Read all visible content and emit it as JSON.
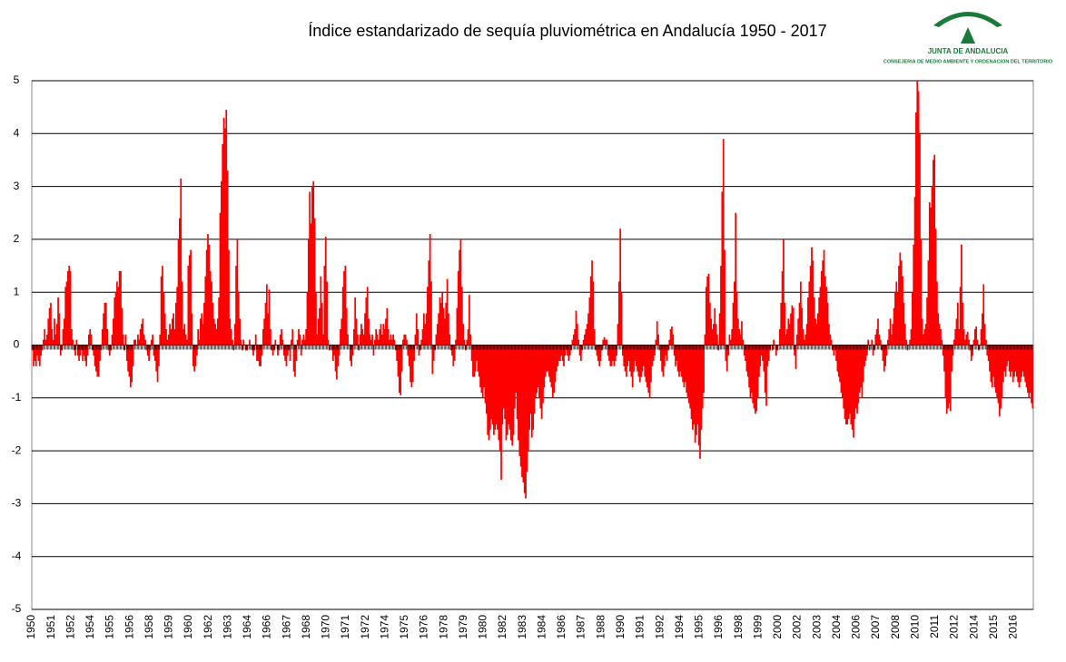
{
  "logo": {
    "name": "JUNTA DE ANDALUCIA",
    "subtitle": "CONSEJERIA DE MEDIO AMBIENTE Y ORDENACION DEL TERRITORIO"
  },
  "chart_data": {
    "type": "bar",
    "title": "Índice estandarizado de sequía pluviométrica en Andalucía 1950 - 2017",
    "color": "#ff0000",
    "grid": true,
    "ylim": [
      -5,
      5
    ],
    "yticks": [
      -5,
      -4,
      -3,
      -2,
      -1,
      0,
      1,
      2,
      3,
      4,
      5
    ],
    "categories": [
      "1950",
      null,
      null,
      null,
      null,
      null,
      null,
      null,
      null,
      null,
      null,
      null,
      null,
      null,
      null,
      null,
      "1951",
      null,
      null,
      null,
      null,
      null,
      null,
      null,
      null,
      null,
      null,
      null,
      null,
      null,
      null,
      null,
      "1952",
      null,
      null,
      null,
      null,
      null,
      null,
      null,
      null,
      null,
      null,
      null,
      null,
      null,
      null,
      null,
      "1954",
      null,
      null,
      null,
      null,
      null,
      null,
      null,
      null,
      null,
      null,
      null,
      null,
      null,
      null,
      null,
      "1955",
      null,
      null,
      null,
      null,
      null,
      null,
      null,
      null,
      null,
      null,
      null,
      null,
      null,
      null,
      null,
      "1956",
      null,
      null,
      null,
      null,
      null,
      null,
      null,
      null,
      null,
      null,
      null,
      null,
      null,
      null,
      null,
      "1958",
      null,
      null,
      null,
      null,
      null,
      null,
      null,
      null,
      null,
      null,
      null,
      null,
      null,
      null,
      null,
      "1959",
      null,
      null,
      null,
      null,
      null,
      null,
      null,
      null,
      null,
      null,
      null,
      null,
      null,
      null,
      null,
      "1960",
      null,
      null,
      null,
      null,
      null,
      null,
      null,
      null,
      null,
      null,
      null,
      null,
      null,
      null,
      null,
      "1962",
      null,
      null,
      null,
      null,
      null,
      null,
      null,
      null,
      null,
      null,
      null,
      null,
      null,
      null,
      null,
      "1963",
      null,
      null,
      null,
      null,
      null,
      null,
      null,
      null,
      null,
      null,
      null,
      null,
      null,
      null,
      null,
      "1964",
      null,
      null,
      null,
      null,
      null,
      null,
      null,
      null,
      null,
      null,
      null,
      null,
      null,
      null,
      null,
      "1966",
      null,
      null,
      null,
      null,
      null,
      null,
      null,
      null,
      null,
      null,
      null,
      null,
      null,
      null,
      null,
      "1967",
      null,
      null,
      null,
      null,
      null,
      null,
      null,
      null,
      null,
      null,
      null,
      null,
      null,
      null,
      null,
      "1968",
      null,
      null,
      null,
      null,
      null,
      null,
      null,
      null,
      null,
      null,
      null,
      null,
      null,
      null,
      null,
      "1970",
      null,
      null,
      null,
      null,
      null,
      null,
      null,
      null,
      null,
      null,
      null,
      null,
      null,
      null,
      null,
      "1971",
      null,
      null,
      null,
      null,
      null,
      null,
      null,
      null,
      null,
      null,
      null,
      null,
      null,
      null,
      null,
      "1972",
      null,
      null,
      null,
      null,
      null,
      null,
      null,
      null,
      null,
      null,
      null,
      null,
      null,
      null,
      null,
      "1974",
      null,
      null,
      null,
      null,
      null,
      null,
      null,
      null,
      null,
      null,
      null,
      null,
      null,
      null,
      null,
      "1975",
      null,
      null,
      null,
      null,
      null,
      null,
      null,
      null,
      null,
      null,
      null,
      null,
      null,
      null,
      null,
      "1976",
      null,
      null,
      null,
      null,
      null,
      null,
      null,
      null,
      null,
      null,
      null,
      null,
      null,
      null,
      null,
      "1978",
      null,
      null,
      null,
      null,
      null,
      null,
      null,
      null,
      null,
      null,
      null,
      null,
      null,
      null,
      null,
      "1979",
      null,
      null,
      null,
      null,
      null,
      null,
      null,
      null,
      null,
      null,
      null,
      null,
      null,
      null,
      null,
      "1980",
      null,
      null,
      null,
      null,
      null,
      null,
      null,
      null,
      null,
      null,
      null,
      null,
      null,
      null,
      null,
      "1982",
      null,
      null,
      null,
      null,
      null,
      null,
      null,
      null,
      null,
      null,
      null,
      null,
      null,
      null,
      null,
      "1983",
      null,
      null,
      null,
      null,
      null,
      null,
      null,
      null,
      null,
      null,
      null,
      null,
      null,
      null,
      null,
      "1984",
      null,
      null,
      null,
      null,
      null,
      null,
      null,
      null,
      null,
      null,
      null,
      null,
      null,
      null,
      null,
      "1986",
      null,
      null,
      null,
      null,
      null,
      null,
      null,
      null,
      null,
      null,
      null,
      null,
      null,
      null,
      null,
      "1987",
      null,
      null,
      null,
      null,
      null,
      null,
      null,
      null,
      null,
      null,
      null,
      null,
      null,
      null,
      null,
      "1988",
      null,
      null,
      null,
      null,
      null,
      null,
      null,
      null,
      null,
      null,
      null,
      null,
      null,
      null,
      null,
      "1990",
      null,
      null,
      null,
      null,
      null,
      null,
      null,
      null,
      null,
      null,
      null,
      null,
      null,
      null,
      null,
      "1991",
      null,
      null,
      null,
      null,
      null,
      null,
      null,
      null,
      null,
      null,
      null,
      null,
      null,
      null,
      null,
      "1992",
      null,
      null,
      null,
      null,
      null,
      null,
      null,
      null,
      null,
      null,
      null,
      null,
      null,
      null,
      null,
      "1994",
      null,
      null,
      null,
      null,
      null,
      null,
      null,
      null,
      null,
      null,
      null,
      null,
      null,
      null,
      null,
      "1995",
      null,
      null,
      null,
      null,
      null,
      null,
      null,
      null,
      null,
      null,
      null,
      null,
      null,
      null,
      null,
      "1996",
      null,
      null,
      null,
      null,
      null,
      null,
      null,
      null,
      null,
      null,
      null,
      null,
      null,
      null,
      null,
      "1998",
      null,
      null,
      null,
      null,
      null,
      null,
      null,
      null,
      null,
      null,
      null,
      null,
      null,
      null,
      null,
      "1999",
      null,
      null,
      null,
      null,
      null,
      null,
      null,
      null,
      null,
      null,
      null,
      null,
      null,
      null,
      null,
      "2000",
      null,
      null,
      null,
      null,
      null,
      null,
      null,
      null,
      null,
      null,
      null,
      null,
      null,
      null,
      null,
      "2002",
      null,
      null,
      null,
      null,
      null,
      null,
      null,
      null,
      null,
      null,
      null,
      null,
      null,
      null,
      null,
      "2003",
      null,
      null,
      null,
      null,
      null,
      null,
      null,
      null,
      null,
      null,
      null,
      null,
      null,
      null,
      null,
      "2004",
      null,
      null,
      null,
      null,
      null,
      null,
      null,
      null,
      null,
      null,
      null,
      null,
      null,
      null,
      null,
      "2006",
      null,
      null,
      null,
      null,
      null,
      null,
      null,
      null,
      null,
      null,
      null,
      null,
      null,
      null,
      null,
      "2007",
      null,
      null,
      null,
      null,
      null,
      null,
      null,
      null,
      null,
      null,
      null,
      null,
      null,
      null,
      null,
      "2008",
      null,
      null,
      null,
      null,
      null,
      null,
      null,
      null,
      null,
      null,
      null,
      null,
      null,
      null,
      null,
      "2010",
      null,
      null,
      null,
      null,
      null,
      null,
      null,
      null,
      null,
      null,
      null,
      null,
      null,
      null,
      null,
      "2011",
      null,
      null,
      null,
      null,
      null,
      null,
      null,
      null,
      null,
      null,
      null,
      null,
      null,
      null,
      null,
      "2012",
      null,
      null,
      null,
      null,
      null,
      null,
      null,
      null,
      null,
      null,
      null,
      null,
      null,
      null,
      null,
      "2014",
      null,
      null,
      null,
      null,
      null,
      null,
      null,
      null,
      null,
      null,
      null,
      null,
      null,
      null,
      null,
      "2015",
      null,
      null,
      null,
      null,
      null,
      null,
      null,
      null,
      null,
      null,
      null,
      null,
      null,
      null,
      null,
      "2016",
      null,
      null,
      null,
      null,
      null,
      null,
      null,
      null,
      null,
      null,
      null,
      null,
      null,
      null,
      null
    ],
    "values": [
      -0.1,
      -0.4,
      -0.3,
      -0.4,
      -0.2,
      -0.3,
      -0.4,
      -0.2,
      -0.1,
      0.1,
      0.3,
      0.1,
      0.2,
      0.5,
      0.7,
      0.8,
      0.3,
      0.1,
      0.5,
      0.2,
      0.4,
      0.9,
      0.6,
      -0.2,
      -0.1,
      0.3,
      0.5,
      1.1,
      1.2,
      1.4,
      1.5,
      1.4,
      0.3,
      0.1,
      -0.1,
      -0.2,
      0.1,
      -0.2,
      -0.3,
      -0.2,
      -0.1,
      -0.3,
      -0.2,
      -0.3,
      -0.4,
      -0.2,
      0.2,
      0.3,
      0.2,
      -0.1,
      -0.2,
      -0.4,
      -0.5,
      -0.6,
      -0.6,
      -0.3,
      -0.1,
      0.3,
      0.6,
      0.8,
      0.8,
      0.3,
      -0.1,
      -0.2,
      -0.1,
      0.2,
      0.5,
      0.9,
      1.0,
      1.2,
      1.1,
      1.4,
      1.4,
      0.7,
      0.2,
      -0.1,
      0.2,
      -0.3,
      -0.5,
      -0.6,
      -0.8,
      -0.7,
      -0.4,
      0.1,
      0.1,
      0.0,
      0.2,
      0.1,
      0.3,
      0.4,
      0.5,
      0.2,
      0.1,
      -0.1,
      -0.2,
      -0.3,
      -0.1,
      0.1,
      0.2,
      -0.2,
      -0.3,
      -0.5,
      -0.7,
      -0.4,
      0.2,
      1.3,
      1.5,
      1.0,
      0.6,
      0.3,
      0.1,
      0.2,
      0.4,
      0.3,
      0.5,
      0.6,
      0.3,
      0.8,
      1.1,
      2.0,
      2.4,
      3.15,
      1.2,
      0.3,
      0.4,
      0.2,
      0.1,
      1.5,
      1.7,
      1.8,
      0.6,
      -0.4,
      -0.5,
      -0.4,
      -0.2,
      0.3,
      0.1,
      0.5,
      0.6,
      0.4,
      0.8,
      1.3,
      1.8,
      2.1,
      1.9,
      1.4,
      1.2,
      0.8,
      0.5,
      0.4,
      0.3,
      0.5,
      0.9,
      2.5,
      3.1,
      3.8,
      4.3,
      4.1,
      4.45,
      3.3,
      1.8,
      0.5,
      0.3,
      0.1,
      -0.1,
      0.4,
      1.5,
      2.0,
      1.0,
      0.5,
      0.1,
      -0.1,
      0.1,
      0.0,
      -0.1,
      -0.1,
      0.0,
      0.1,
      0.0,
      -0.1,
      -0.2,
      -0.1,
      0.2,
      -0.3,
      -0.3,
      -0.4,
      -0.4,
      -0.2,
      0.3,
      0.5,
      0.8,
      1.15,
      0.6,
      1.05,
      0.3,
      -0.1,
      -0.2,
      -0.1,
      0.1,
      0.0,
      -0.2,
      -0.1,
      0.2,
      0.3,
      0.1,
      -0.2,
      -0.3,
      -0.4,
      -0.2,
      -0.1,
      -0.3,
      0.1,
      0.3,
      -0.5,
      -0.6,
      -0.3,
      0.1,
      0.3,
      0.2,
      -0.2,
      0.1,
      0.2,
      0.1,
      0.3,
      1.0,
      2.0,
      2.9,
      2.3,
      3.0,
      3.1,
      2.4,
      1.0,
      0.2,
      0.5,
      0.7,
      1.3,
      0.8,
      0.2,
      1.5,
      2.05,
      1.2,
      0.1,
      -0.1,
      0.0,
      -0.1,
      -0.3,
      -0.2,
      -0.5,
      -0.65,
      -0.4,
      -0.2,
      0.3,
      0.5,
      1.1,
      1.4,
      1.5,
      0.7,
      0.2,
      0.0,
      -0.3,
      -0.4,
      -0.2,
      0.3,
      0.9,
      0.5,
      0.2,
      -0.1,
      0.2,
      0.4,
      0.3,
      0.2,
      0.6,
      0.9,
      1.1,
      0.5,
      0.2,
      0.1,
      0.2,
      -0.2,
      0.1,
      0.3,
      0.2,
      0.1,
      0.3,
      0.4,
      0.2,
      0.4,
      0.3,
      0.5,
      0.7,
      0.3,
      0.1,
      0.2,
      0.1,
      0.2,
      0.1,
      -0.1,
      -0.3,
      -0.6,
      -0.9,
      -0.95,
      -0.5,
      0.1,
      0.2,
      0.2,
      0.1,
      -0.2,
      -0.4,
      -0.7,
      -0.8,
      -0.7,
      -0.3,
      0.2,
      0.6,
      0.3,
      -0.2,
      -0.1,
      0.1,
      0.3,
      0.6,
      0.4,
      0.6,
      1.1,
      1.6,
      2.1,
      1.2,
      -0.55,
      -0.3,
      -0.1,
      0.2,
      0.4,
      0.6,
      0.9,
      0.8,
      1.0,
      0.7,
      0.5,
      0.8,
      1.25,
      0.6,
      0.2,
      -0.1,
      -0.2,
      -0.4,
      -0.3,
      0.1,
      0.7,
      1.4,
      1.8,
      2.0,
      1.1,
      0.4,
      0.1,
      -0.1,
      0.1,
      0.3,
      0.95,
      0.2,
      -0.3,
      -0.6,
      -0.6,
      -0.5,
      -0.3,
      -0.5,
      -0.6,
      -0.8,
      -0.9,
      -1.0,
      -0.8,
      -1.1,
      -1.3,
      -1.7,
      -1.8,
      -1.6,
      -1.4,
      -1.5,
      -1.7,
      -1.6,
      -1.5,
      -1.6,
      -1.8,
      -2.0,
      -2.55,
      -1.5,
      -1.2,
      -1.4,
      -1.8,
      -1.7,
      -1.5,
      -1.6,
      -1.8,
      -1.9,
      -1.7,
      -1.2,
      -0.9,
      -1.4,
      -1.8,
      -2.1,
      -2.3,
      -2.5,
      -2.6,
      -2.8,
      -2.9,
      -2.4,
      -2.0,
      -1.6,
      -1.3,
      -1.75,
      -1.6,
      -1.3,
      -1.0,
      -0.9,
      -0.8,
      -1.0,
      -1.2,
      -1.4,
      -1.1,
      -0.8,
      -0.6,
      -0.5,
      -0.5,
      -0.6,
      -0.7,
      -0.8,
      -1.0,
      -0.9,
      -0.7,
      -0.5,
      -0.4,
      -0.3,
      -0.3,
      -0.2,
      -0.3,
      -0.4,
      -0.2,
      -0.1,
      -0.2,
      -0.3,
      -0.2,
      -0.1,
      0.1,
      0.2,
      0.3,
      0.65,
      0.4,
      0.1,
      -0.2,
      -0.3,
      -0.1,
      0.1,
      0.2,
      0.3,
      0.4,
      0.6,
      0.9,
      1.3,
      1.6,
      1.2,
      0.3,
      -0.1,
      -0.2,
      -0.3,
      -0.4,
      -0.3,
      -0.1,
      0.1,
      0.15,
      0.1,
      0.1,
      -0.2,
      -0.3,
      -0.4,
      -0.4,
      -0.3,
      -0.4,
      -0.3,
      -0.2,
      0.4,
      1.2,
      2.2,
      1.0,
      -0.2,
      -0.4,
      -0.5,
      -0.6,
      -0.4,
      -0.3,
      -0.5,
      -0.6,
      -0.8,
      -0.5,
      -0.3,
      -0.4,
      -0.5,
      -0.6,
      -0.7,
      -0.6,
      -0.5,
      -0.4,
      -0.6,
      -0.7,
      -0.8,
      -0.9,
      -1.0,
      -0.7,
      -0.4,
      -0.3,
      -0.2,
      0.1,
      0.45,
      0.2,
      -0.1,
      -0.3,
      -0.5,
      -0.6,
      -0.4,
      -0.2,
      -0.3,
      -0.1,
      0.1,
      0.3,
      0.35,
      0.2,
      -0.2,
      -0.4,
      -0.3,
      -0.5,
      -0.6,
      -0.5,
      -0.6,
      -0.7,
      -0.8,
      -0.7,
      -0.9,
      -1.0,
      -1.1,
      -1.2,
      -1.4,
      -1.6,
      -1.5,
      -1.85,
      -1.7,
      -1.5,
      -1.9,
      -2.15,
      -1.6,
      -1.2,
      -0.9,
      0.2,
      1.1,
      1.3,
      1.35,
      0.8,
      0.5,
      0.3,
      0.4,
      0.7,
      0.4,
      0.2,
      -0.1,
      0.6,
      1.5,
      2.9,
      3.9,
      1.8,
      -0.3,
      -0.5,
      -0.2,
      0.2,
      0.1,
      0.3,
      0.8,
      1.2,
      2.5,
      1.0,
      0.5,
      0.3,
      0.2,
      0.45,
      0.1,
      -0.2,
      -0.3,
      -0.5,
      -0.6,
      -0.8,
      -1.0,
      -0.9,
      -1.1,
      -1.2,
      -1.3,
      -1.25,
      -1.0,
      -0.6,
      -0.4,
      -0.2,
      -0.3,
      -0.5,
      -0.9,
      -1.15,
      -0.4,
      -0.3,
      -0.1,
      0.0,
      -0.1,
      0.1,
      0.0,
      -0.2,
      -0.1,
      0.0,
      0.3,
      0.8,
      1.4,
      2.0,
      0.8,
      0.2,
      0.3,
      0.5,
      0.4,
      0.6,
      0.75,
      0.7,
      -0.2,
      -0.45,
      0.2,
      0.5,
      0.8,
      1.2,
      0.7,
      0.3,
      0.1,
      0.2,
      0.4,
      0.9,
      1.2,
      1.5,
      1.85,
      1.6,
      0.9,
      0.5,
      0.4,
      0.6,
      0.9,
      1.1,
      1.4,
      1.6,
      1.8,
      1.3,
      1.1,
      0.8,
      0.4,
      0.2,
      0.1,
      -0.1,
      -0.2,
      -0.1,
      -0.3,
      -0.5,
      -0.6,
      -0.7,
      -0.9,
      -1.0,
      -1.2,
      -1.4,
      -1.5,
      -1.5,
      -1.4,
      -1.3,
      -1.5,
      -1.6,
      -1.75,
      -1.4,
      -1.2,
      -1.3,
      -1.1,
      -0.9,
      -0.8,
      -1.0,
      -0.7,
      -0.4,
      -0.3,
      -0.2,
      0.1,
      -0.1,
      0.0,
      0.1,
      -0.2,
      -0.1,
      0.2,
      0.3,
      0.5,
      0.2,
      0.1,
      -0.1,
      -0.3,
      -0.5,
      -0.4,
      -0.2,
      0.1,
      0.3,
      0.5,
      0.2,
      0.4,
      0.7,
      1.0,
      1.2,
      1.0,
      1.5,
      1.75,
      1.6,
      1.3,
      0.8,
      0.4,
      0.1,
      -0.1,
      0.0,
      0.1,
      0.3,
      1.0,
      1.9,
      2.8,
      4.4,
      5.0,
      4.8,
      4.0,
      2.0,
      0.5,
      0.2,
      0.3,
      0.4,
      0.9,
      1.6,
      2.7,
      2.6,
      3.0,
      3.5,
      3.6,
      2.2,
      1.2,
      0.6,
      0.4,
      0.3,
      0.1,
      -0.2,
      -0.5,
      -1.0,
      -1.3,
      -1.2,
      -1.1,
      -1.25,
      -0.5,
      -0.2,
      0.1,
      0.3,
      0.5,
      0.8,
      0.3,
      1.1,
      1.9,
      0.8,
      0.3,
      0.1,
      0.2,
      0.25,
      0.1,
      -0.1,
      -0.3,
      -0.2,
      0.1,
      0.3,
      0.35,
      0.1,
      -0.1,
      0.0,
      0.3,
      0.6,
      1.15,
      0.4,
      0.1,
      -0.2,
      -0.3,
      -0.5,
      -0.7,
      -0.8,
      -0.6,
      -0.8,
      -0.9,
      -1.0,
      -1.1,
      -1.35,
      -1.2,
      -1.0,
      -0.7,
      -0.5,
      -0.6,
      -0.4,
      -0.3,
      -0.5,
      -0.6,
      -0.5,
      -0.7,
      -0.6,
      -0.5,
      -0.6,
      -0.7,
      -0.8,
      -0.7,
      -0.6,
      -0.5,
      -0.6,
      -0.7,
      -0.8,
      -0.9,
      -1.0,
      -0.9,
      -1.1,
      -1.2
    ]
  }
}
